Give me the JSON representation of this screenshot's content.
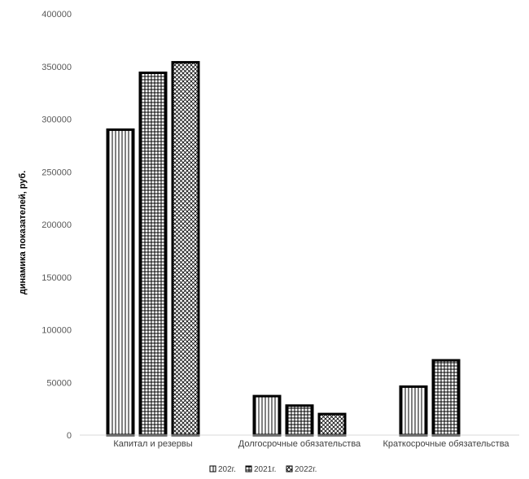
{
  "chart_data": {
    "type": "bar",
    "ylabel": "динамика показателей, руб.",
    "xlabel": "",
    "ylim": [
      0,
      400000
    ],
    "yticks": [
      0,
      50000,
      100000,
      150000,
      200000,
      250000,
      300000,
      350000,
      400000
    ],
    "categories": [
      "Капитал и резервы",
      "Долгосрочные обязательства",
      "Краткосрочные обязательства"
    ],
    "series": [
      {
        "name": "202г.",
        "pattern": "vertical-lines",
        "values": [
          290000,
          37000,
          46000
        ]
      },
      {
        "name": "2021г.",
        "pattern": "grid",
        "values": [
          344000,
          28000,
          71000
        ]
      },
      {
        "name": "2022г.",
        "pattern": "crosshatch",
        "values": [
          354000,
          20000,
          0
        ]
      }
    ],
    "legend_position": "bottom",
    "grid": false,
    "colors": {
      "bar_stroke": "#000000",
      "axis": "#d9d9d9",
      "background": "#ffffff"
    }
  }
}
